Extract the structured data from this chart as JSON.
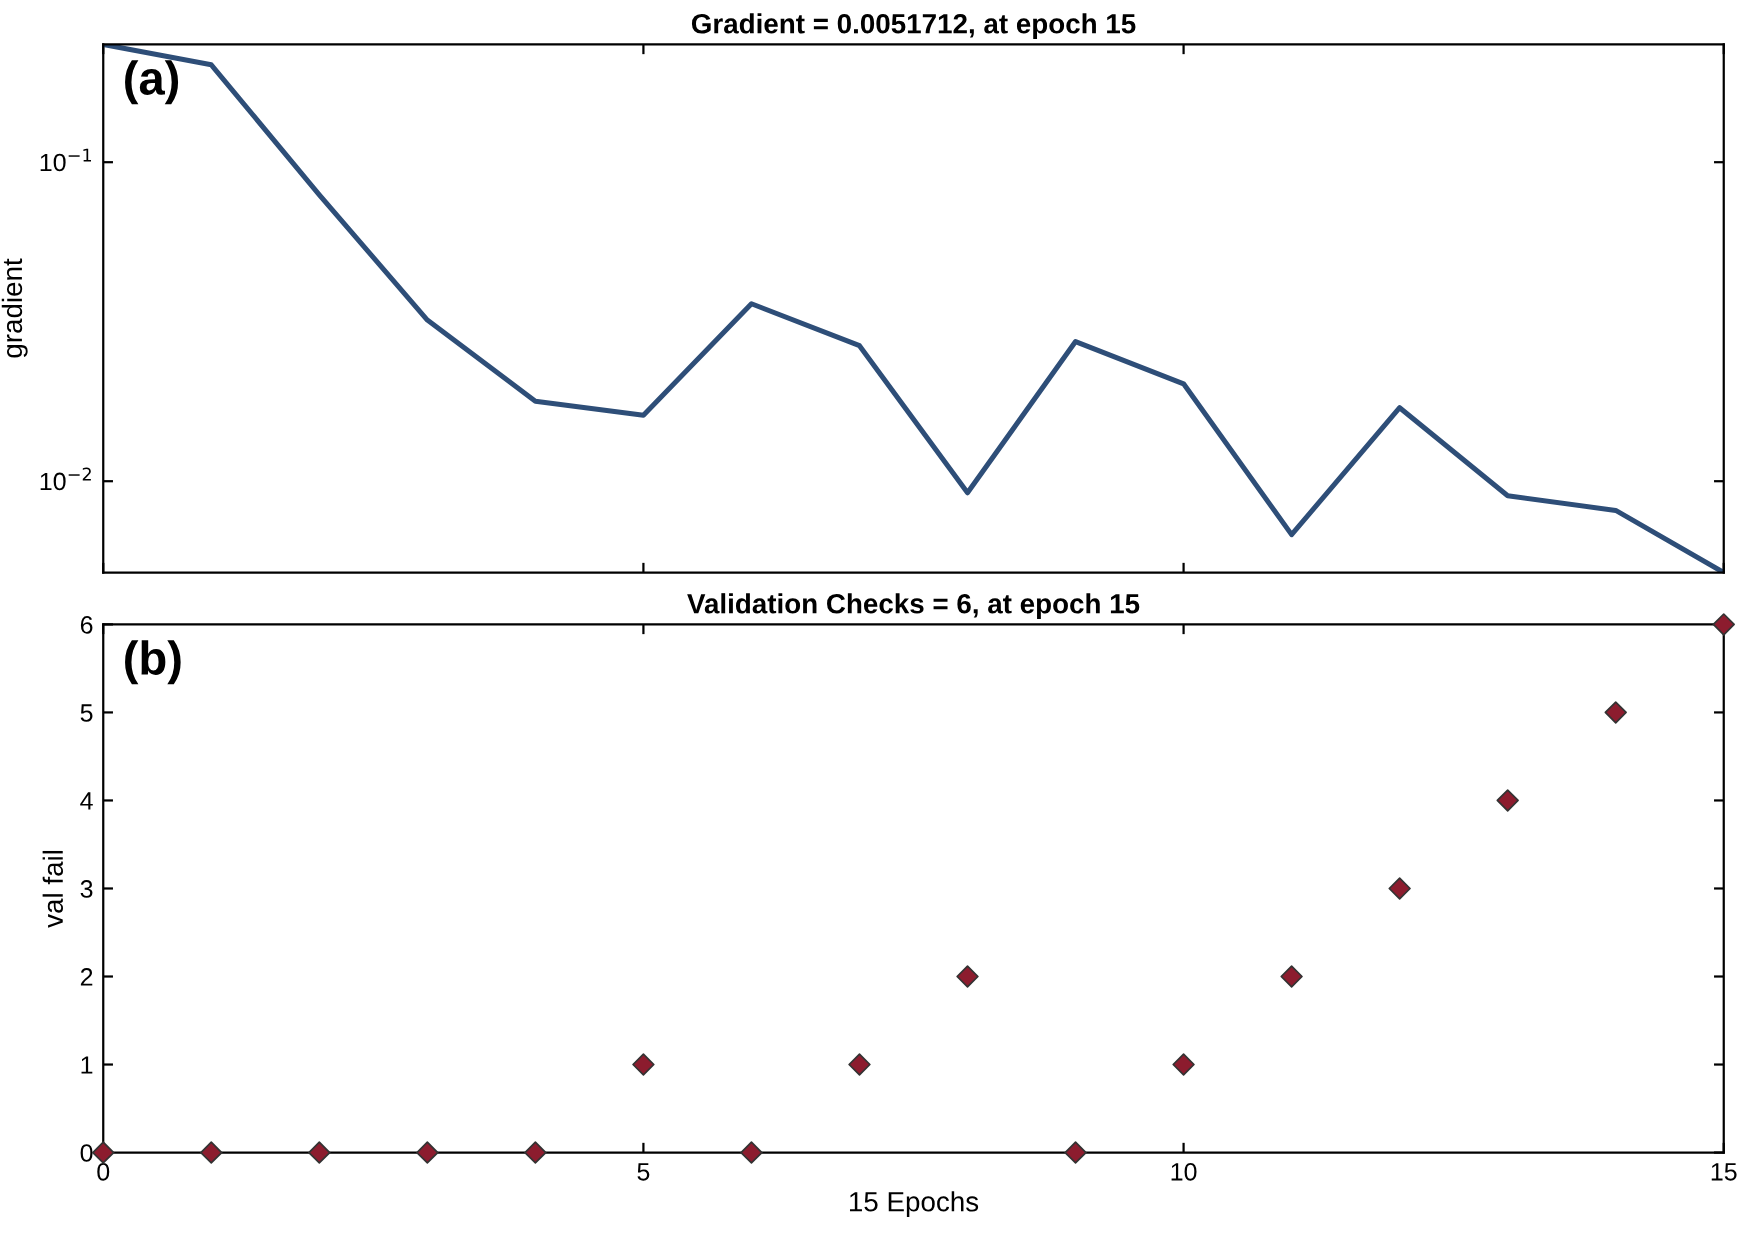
{
  "chart_data": [
    {
      "type": "line",
      "title": "Gradient = 0.0051712, at epoch 15",
      "ylabel": "gradient",
      "annotations": [
        "(a)"
      ],
      "x": [
        0,
        1,
        2,
        3,
        4,
        5,
        6,
        7,
        8,
        9,
        10,
        11,
        12,
        13,
        14,
        15
      ],
      "series": [
        {
          "color": "#2e4e78",
          "values": [
            0.234,
            0.202,
            0.079,
            0.032,
            0.0178,
            0.0161,
            0.036,
            0.0266,
            0.0092,
            0.0274,
            0.0202,
            0.0068,
            0.017,
            0.009,
            0.0081,
            0.0051712
          ]
        }
      ],
      "log": "y",
      "xlim": [
        0,
        15
      ],
      "xticks": [
        {
          "value": 0,
          "label": null
        },
        {
          "value": 5,
          "label": null
        },
        {
          "value": 10,
          "label": null
        },
        {
          "value": 15,
          "label": null
        }
      ],
      "ylim": [
        0.0051712,
        0.234
      ],
      "yticks": [
        {
          "value": 0.01,
          "label": "10$^{−2}$"
        },
        {
          "value": 0.1,
          "label": "10$^{−1}$"
        }
      ],
      "tick_labels": "y",
      "grid": false,
      "marker": "none",
      "line_style": "solid"
    },
    {
      "type": "scatter",
      "title": "Validation Checks = 6, at epoch 15",
      "xlabel": "15 Epochs",
      "ylabel": "val fail",
      "annotations": [
        "(b)"
      ],
      "x": [
        0,
        1,
        2,
        3,
        4,
        5,
        6,
        7,
        8,
        9,
        10,
        11,
        12,
        13,
        14,
        15
      ],
      "series": [
        {
          "color": "#8c1c2e",
          "values": [
            0,
            0,
            0,
            0,
            0,
            1,
            0,
            1,
            2,
            0,
            1,
            2,
            3,
            4,
            5,
            6
          ]
        }
      ],
      "xlim": [
        0,
        15
      ],
      "xticks": [
        0,
        5,
        10,
        15
      ],
      "ylim": [
        0,
        6
      ],
      "yticks": [
        0,
        1,
        2,
        3,
        4,
        5,
        6
      ],
      "grid": false,
      "marker": "diamond"
    }
  ]
}
